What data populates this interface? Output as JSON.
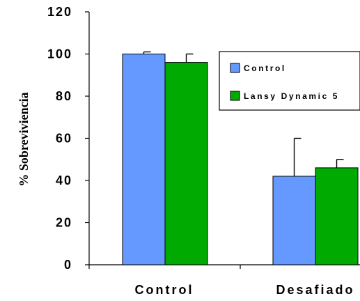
{
  "chart_data": {
    "type": "bar",
    "title": "",
    "xlabel": "",
    "ylabel": "% Sobreviviencia",
    "ylim": [
      0,
      120
    ],
    "yticks": [
      "0",
      "20",
      "40",
      "60",
      "80",
      "100",
      "120"
    ],
    "categories": [
      "Control",
      "Desafiado"
    ],
    "series": [
      {
        "name": "Control",
        "color": "#6699FF",
        "values": [
          100,
          42
        ],
        "error": [
          1,
          18
        ]
      },
      {
        "name": "Lansy Dynamic 5",
        "color": "#00AA00",
        "values": [
          96,
          46
        ],
        "error": [
          4,
          4
        ]
      }
    ],
    "legend": {
      "position": "top-right",
      "entries": [
        "Control",
        "Lansy Dynamic 5"
      ]
    },
    "grid": false
  }
}
